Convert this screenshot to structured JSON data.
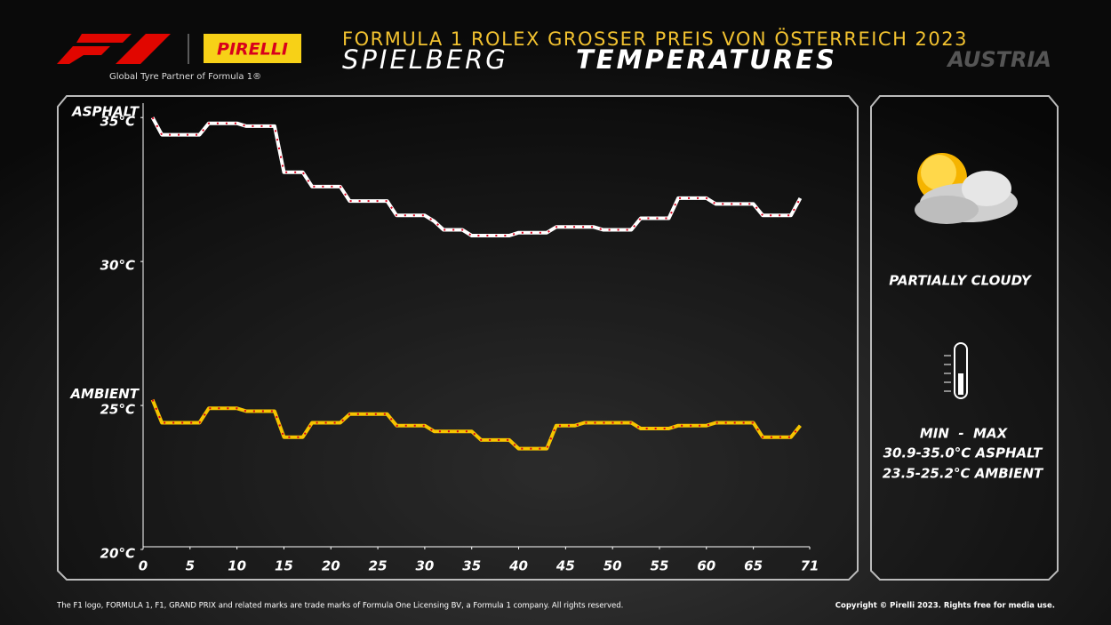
{
  "header": {
    "partner": "Global Tyre Partner of Formula 1®",
    "brand": "PIRELLI",
    "event": "FORMULA 1 ROLEX GROSSER PREIS VON ÖSTERREICH 2023",
    "circuit": "SPIELBERG",
    "topic": "TEMPERATURES",
    "country": "AUSTRIA"
  },
  "panel": {
    "weather": "PARTIALLY CLOUDY",
    "range_header": "MIN  -  MAX",
    "asphalt_range": "30.9-35.0°C ASPHALT",
    "ambient_range": "23.5-25.2°C AMBIENT"
  },
  "footer": {
    "left": "The F1 logo, FORMULA 1, F1, GRAND PRIX and related marks are trade marks of Formula One Licensing BV, a Formula 1 company. All rights reserved.",
    "right": "Copyright © Pirelli 2023. Rights free for media use."
  },
  "chart_data": {
    "type": "line",
    "x": [
      1,
      2,
      3,
      4,
      5,
      6,
      7,
      8,
      9,
      10,
      11,
      12,
      13,
      14,
      15,
      16,
      17,
      18,
      19,
      20,
      21,
      22,
      23,
      24,
      25,
      26,
      27,
      28,
      29,
      30,
      31,
      32,
      33,
      34,
      35,
      36,
      37,
      38,
      39,
      40,
      41,
      42,
      43,
      44,
      45,
      46,
      47,
      48,
      49,
      50,
      51,
      52,
      53,
      54,
      55,
      56,
      57,
      58,
      59,
      60,
      61,
      62,
      63,
      64,
      65,
      66,
      67,
      68,
      69,
      70
    ],
    "series": [
      {
        "name": "ASPHALT",
        "color": "#ffffff",
        "values": [
          35.0,
          34.4,
          34.4,
          34.4,
          34.4,
          34.4,
          34.8,
          34.8,
          34.8,
          34.8,
          34.7,
          34.7,
          34.7,
          34.7,
          33.1,
          33.1,
          33.1,
          32.6,
          32.6,
          32.6,
          32.6,
          32.1,
          32.1,
          32.1,
          32.1,
          32.1,
          31.6,
          31.6,
          31.6,
          31.6,
          31.4,
          31.1,
          31.1,
          31.1,
          30.9,
          30.9,
          30.9,
          30.9,
          30.9,
          31.0,
          31.0,
          31.0,
          31.0,
          31.2,
          31.2,
          31.2,
          31.2,
          31.2,
          31.1,
          31.1,
          31.1,
          31.1,
          31.5,
          31.5,
          31.5,
          31.5,
          32.2,
          32.2,
          32.2,
          32.2,
          32.0,
          32.0,
          32.0,
          32.0,
          32.0,
          31.6,
          31.6,
          31.6,
          31.6,
          32.2
        ]
      },
      {
        "name": "AMBIENT",
        "color": "#f5c400",
        "values": [
          25.2,
          24.4,
          24.4,
          24.4,
          24.4,
          24.4,
          24.9,
          24.9,
          24.9,
          24.9,
          24.8,
          24.8,
          24.8,
          24.8,
          23.9,
          23.9,
          23.9,
          24.4,
          24.4,
          24.4,
          24.4,
          24.7,
          24.7,
          24.7,
          24.7,
          24.7,
          24.3,
          24.3,
          24.3,
          24.3,
          24.1,
          24.1,
          24.1,
          24.1,
          24.1,
          23.8,
          23.8,
          23.8,
          23.8,
          23.5,
          23.5,
          23.5,
          23.5,
          24.3,
          24.3,
          24.3,
          24.4,
          24.4,
          24.4,
          24.4,
          24.4,
          24.4,
          24.2,
          24.2,
          24.2,
          24.2,
          24.3,
          24.3,
          24.3,
          24.3,
          24.4,
          24.4,
          24.4,
          24.4,
          24.4,
          23.9,
          23.9,
          23.9,
          23.9,
          24.3
        ]
      }
    ],
    "xlim": [
      0,
      71
    ],
    "xticks": [
      0,
      5,
      10,
      15,
      20,
      25,
      30,
      35,
      40,
      45,
      50,
      55,
      60,
      65,
      71
    ],
    "ylim": [
      20,
      35.5
    ],
    "yticks": [
      {
        "value": 20,
        "label": "20°C"
      },
      {
        "value": 25,
        "label": "25°C"
      },
      {
        "value": 30,
        "label": "30°C"
      },
      {
        "value": 35,
        "label": "35°C"
      }
    ]
  }
}
